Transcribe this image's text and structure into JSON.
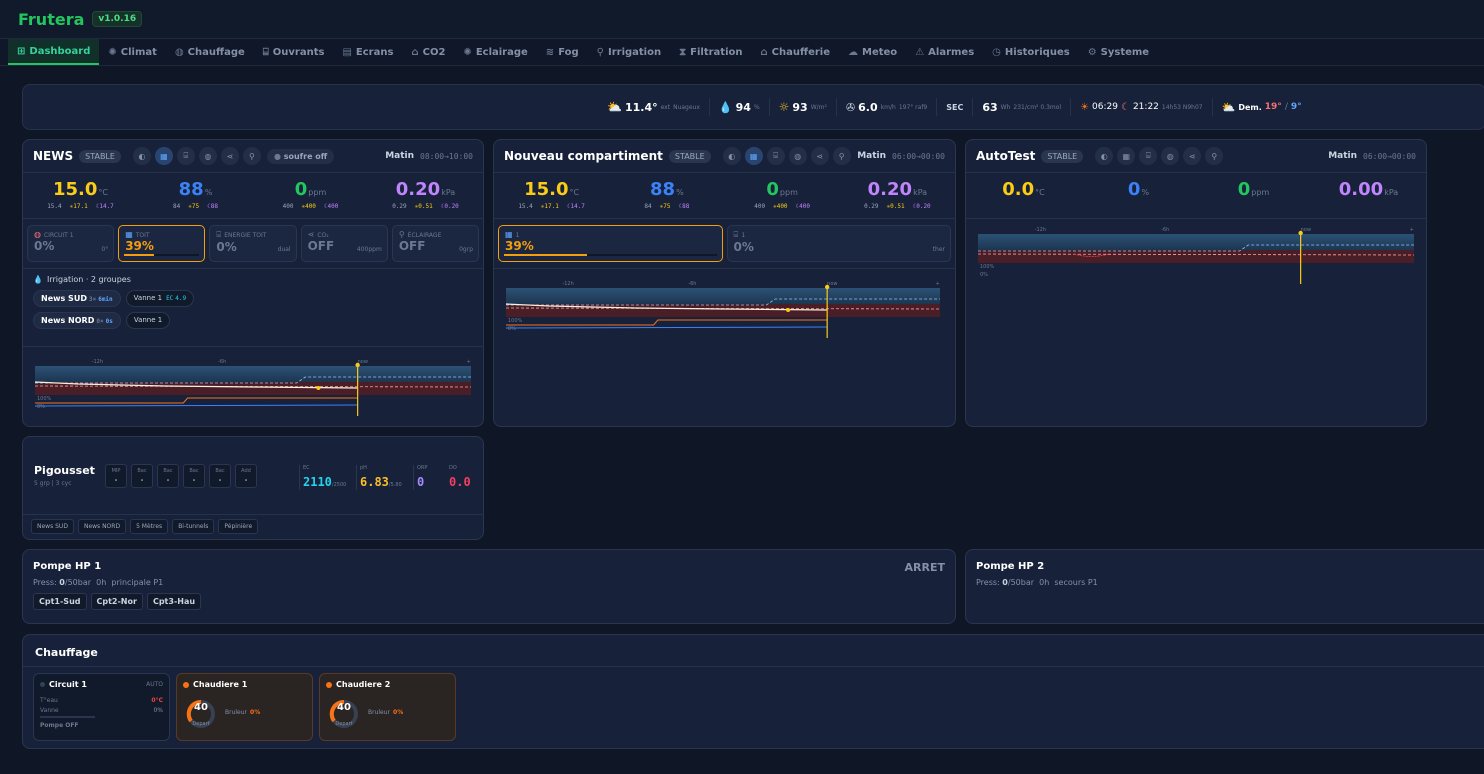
{
  "app": {
    "name": "Frutera",
    "version": "v1.0.16"
  },
  "nav": [
    {
      "label": "Dashboard",
      "icon": "grid-icon"
    },
    {
      "label": "Climat",
      "icon": "sun-icon"
    },
    {
      "label": "Chauffage",
      "icon": "flame-icon"
    },
    {
      "label": "Ouvrants",
      "icon": "window-icon"
    },
    {
      "label": "Ecrans",
      "icon": "screen-icon"
    },
    {
      "label": "CO2",
      "icon": "co2-icon"
    },
    {
      "label": "Eclairage",
      "icon": "sun-icon"
    },
    {
      "label": "Fog",
      "icon": "fog-icon"
    },
    {
      "label": "Irrigation",
      "icon": "irrigation-icon"
    },
    {
      "label": "Filtration",
      "icon": "filter-icon"
    },
    {
      "label": "Chaufferie",
      "icon": "boiler-icon"
    },
    {
      "label": "Meteo",
      "icon": "cloud-icon"
    },
    {
      "label": "Alarmes",
      "icon": "warning-icon"
    },
    {
      "label": "Historiques",
      "icon": "clock-icon"
    },
    {
      "label": "Systeme",
      "icon": "gear-icon"
    }
  ],
  "weather": {
    "temp": "11.4°",
    "temp_unit": "ext",
    "condition": "Nuageux",
    "humidity": "94",
    "humidity_unit": "%",
    "radiation": "93",
    "radiation_unit": "W/m²",
    "wind": "6.0",
    "wind_unit": "km/h",
    "wind_dir": "197° raf9",
    "state": "SEC",
    "energy": "63",
    "energy_unit": "Wh",
    "energy_extra": "231/cm² 0.3mol",
    "sunrise": "06:29",
    "sunset": "21:22",
    "daylength": "14h53 N9h07",
    "forecast_label": "Dem.",
    "forecast_max": "19°",
    "forecast_sep": "/",
    "forecast_min": "9°"
  },
  "compartments": [
    {
      "name": "NEWS",
      "status": "STABLE",
      "soufre": "soufre off",
      "period": "Matin",
      "period_time": "08:00→10:00",
      "metrics": [
        {
          "value": "15.0",
          "unit": "°C",
          "sub": [
            "15.4",
            "17.1",
            "14.7"
          ]
        },
        {
          "value": "88",
          "unit": "%",
          "sub": [
            "84",
            "75",
            "88"
          ]
        },
        {
          "value": "0",
          "unit": "ppm",
          "sub": [
            "400",
            "400",
            "400"
          ]
        },
        {
          "value": "0.20",
          "unit": "kPa",
          "sub": [
            "0.29",
            "0.51",
            "0.20"
          ]
        }
      ],
      "equipment": [
        {
          "label": "CIRCUIT 1",
          "value": "0%",
          "right": "0°"
        },
        {
          "label": "TOIT",
          "value": "39%",
          "right": "",
          "active": true,
          "fill": 0.39
        },
        {
          "label": "ENERGIE TOIT",
          "value": "0%",
          "right": "dual"
        },
        {
          "label": "CO₂",
          "value": "OFF",
          "right": "400ppm"
        },
        {
          "label": "ÉCLAIRAGE",
          "value": "OFF",
          "right": "0grp"
        }
      ],
      "irrigation": {
        "title": "Irrigation · 2 groupes",
        "groups": [
          {
            "name": "News SUD",
            "count": "3×",
            "dur": "6min",
            "valve": "Vanne 1",
            "ec_label": "EC",
            "ec": "4.9"
          },
          {
            "name": "News NORD",
            "count": "0×",
            "dur": "0s",
            "valve": "Vanne 1"
          }
        ]
      }
    },
    {
      "name": "Nouveau compartiment",
      "status": "STABLE",
      "period": "Matin",
      "period_time": "06:00→00:00",
      "metrics": [
        {
          "value": "15.0",
          "unit": "°C",
          "sub": [
            "15.4",
            "17.1",
            "14.7"
          ]
        },
        {
          "value": "88",
          "unit": "%",
          "sub": [
            "84",
            "75",
            "88"
          ]
        },
        {
          "value": "0",
          "unit": "ppm",
          "sub": [
            "400",
            "400",
            "400"
          ]
        },
        {
          "value": "0.20",
          "unit": "kPa",
          "sub": [
            "0.29",
            "0.51",
            "0.20"
          ]
        }
      ],
      "equipment": [
        {
          "label": "1",
          "value": "39%",
          "right": "",
          "active": true,
          "fill": 0.39
        },
        {
          "label": "1",
          "value": "0%",
          "right": "ther"
        }
      ]
    },
    {
      "name": "AutoTest",
      "status": "STABLE",
      "period": "Matin",
      "period_time": "06:00→00:00",
      "metrics": [
        {
          "value": "0.0",
          "unit": "°C"
        },
        {
          "value": "0",
          "unit": "%"
        },
        {
          "value": "0",
          "unit": "ppm"
        },
        {
          "value": "0.00",
          "unit": "kPa"
        }
      ]
    }
  ],
  "chart_labels": {
    "t1": "-12h",
    "t2": "-6h",
    "t3": "now",
    "end": "+",
    "pct": "100%",
    "zero": "0%"
  },
  "fertig": {
    "name": "Pigousset",
    "sub": "5 grp | 3 cyc",
    "steps": [
      {
        "label": "MIP",
        "value": "-"
      },
      {
        "label": "Bac",
        "value": "-"
      },
      {
        "label": "Bac",
        "value": "-"
      },
      {
        "label": "Bac",
        "value": "-"
      },
      {
        "label": "Bac",
        "value": "-"
      },
      {
        "label": "Add",
        "value": "-"
      }
    ],
    "ec_label": "EC",
    "ec": "2110",
    "ec_target": "/2500",
    "ph_label": "pH",
    "ph": "6.83",
    "ph_target": "/5.80",
    "orp_label": "ORP",
    "orp": "0",
    "do_label": "DO",
    "do": "0.0",
    "tags": [
      "News SUD",
      "News NORD",
      "5 Mètres",
      "Bi-tunnels",
      "Pépinière"
    ]
  },
  "pumps": [
    {
      "name": "Pompe HP 1",
      "state": "ARRET",
      "press_label": "Press:",
      "press": "0",
      "press_max": "/50bar",
      "hours": "0h",
      "role": "principale P1",
      "tags": [
        "Cpt1-Sud",
        "Cpt2-Nor",
        "Cpt3-Hau"
      ]
    },
    {
      "name": "Pompe HP 2",
      "press_label": "Press:",
      "press": "0",
      "press_max": "/50bar",
      "hours": "0h",
      "role": "secours P1"
    }
  ],
  "heating": {
    "title": "Chauffage",
    "circuit": {
      "name": "Circuit 1",
      "mode": "AUTO",
      "teau_label": "T°eau",
      "teau": "0°C",
      "vanne_label": "Vanne",
      "vanne": "0%",
      "pump": "Pompe OFF"
    },
    "boilers": [
      {
        "name": "Chaudiere 1",
        "gauge": "40",
        "gauge_label": "Depart",
        "burner_label": "Bruleur",
        "burner": "0%"
      },
      {
        "name": "Chaudiere 2",
        "gauge": "40",
        "gauge_label": "Depart",
        "burner_label": "Bruleur",
        "burner": "0%"
      }
    ]
  }
}
